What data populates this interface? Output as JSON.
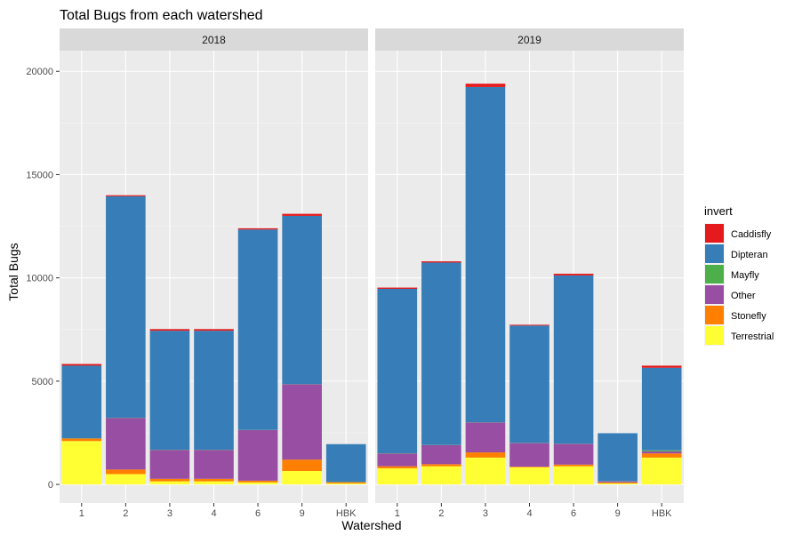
{
  "chart_data": {
    "type": "bar",
    "stacked": true,
    "title": "Total Bugs from each watershed",
    "xlabel": "Watershed",
    "ylabel": "Total Bugs",
    "ylim": [
      -900,
      21000
    ],
    "yticks": [
      0,
      5000,
      10000,
      15000,
      20000
    ],
    "ytick_labels": [
      "0",
      "5000",
      "10000",
      "15000",
      "20000"
    ],
    "grid": true,
    "legend": {
      "title": "invert",
      "placement": "right"
    },
    "categories": [
      "1",
      "2",
      "3",
      "4",
      "6",
      "9",
      "HBK"
    ],
    "stack_order": [
      "Terrestrial",
      "Stonefly",
      "Other",
      "Mayfly",
      "Dipteran",
      "Caddisfly"
    ],
    "legend_order": [
      "Caddisfly",
      "Dipteran",
      "Mayfly",
      "Other",
      "Stonefly",
      "Terrestrial"
    ],
    "colors": {
      "Caddisfly": "#E41A1C",
      "Dipteran": "#377EB8",
      "Mayfly": "#4DAF4A",
      "Other": "#984EA3",
      "Stonefly": "#FF7F00",
      "Terrestrial": "#FFFF33"
    },
    "facets": [
      {
        "label": "2018",
        "series": {
          "Terrestrial": [
            2100,
            500,
            150,
            150,
            100,
            650,
            50
          ],
          "Stonefly": [
            120,
            220,
            120,
            120,
            80,
            550,
            60
          ],
          "Other": [
            0,
            2500,
            1400,
            1400,
            2450,
            3650,
            0
          ],
          "Mayfly": [
            10,
            10,
            10,
            10,
            10,
            10,
            10
          ],
          "Dipteran": [
            3520,
            10720,
            5760,
            5760,
            9700,
            8140,
            1830
          ],
          "Caddisfly": [
            80,
            50,
            80,
            80,
            60,
            100,
            0
          ]
        }
      },
      {
        "label": "2019",
        "series": {
          "Terrestrial": [
            780,
            880,
            1300,
            830,
            880,
            50,
            1300
          ],
          "Stonefly": [
            100,
            100,
            250,
            30,
            80,
            50,
            200
          ],
          "Other": [
            620,
            920,
            1450,
            1140,
            1000,
            50,
            100
          ],
          "Mayfly": [
            10,
            10,
            10,
            10,
            10,
            10,
            50
          ],
          "Dipteran": [
            7960,
            8830,
            16230,
            5680,
            8150,
            2320,
            4000
          ],
          "Caddisfly": [
            60,
            60,
            160,
            40,
            80,
            0,
            100
          ]
        }
      }
    ]
  }
}
